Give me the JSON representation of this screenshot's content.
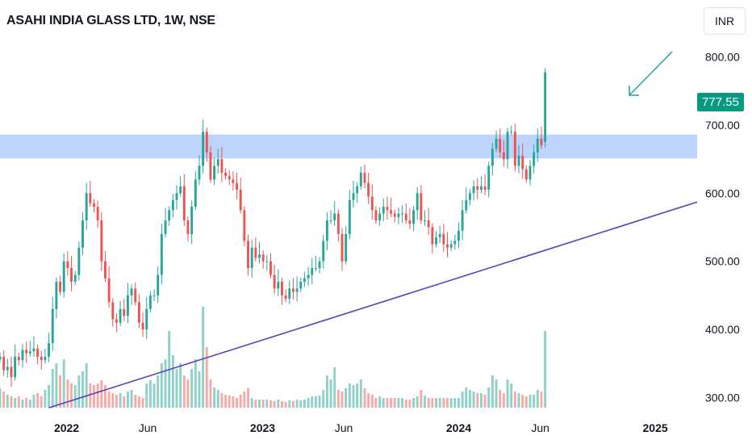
{
  "header": {
    "title": "ASAHI INDIA GLASS LTD, 1W, NSE",
    "currency": "INR"
  },
  "price_badge": "777.55",
  "colors": {
    "up": "#26a69a",
    "down": "#ef5350",
    "up_volume": "#8fd0c8",
    "down_volume": "#f7a9a7",
    "zone": "#b2cdfc",
    "trendline": "#5b3fb8",
    "arrow": "#26a69a"
  },
  "chart_data": {
    "type": "candlestick",
    "title": "",
    "xlabel": "",
    "ylabel": "",
    "ylim": [
      284,
      810
    ],
    "y_ticks": [
      "800.00",
      "700.00",
      "600.00",
      "500.00",
      "400.00",
      "300.00"
    ],
    "y_tick_values": [
      800,
      700,
      600,
      500,
      400,
      300
    ],
    "x_ticks": [
      {
        "label": "2022",
        "x": "2022-01-01"
      },
      {
        "label": "Jun",
        "x": "2022-06-01"
      },
      {
        "label": "2023",
        "x": "2023-01-01"
      },
      {
        "label": "Jun",
        "x": "2023-06-01"
      },
      {
        "label": "2024",
        "x": "2024-01-01"
      },
      {
        "label": "Jun",
        "x": "2024-06-01"
      },
      {
        "label": "2025",
        "x": "2025-01-01"
      }
    ],
    "x_range": [
      "2021-08-30",
      "2025-03-20"
    ],
    "start_week": "2021-08-30",
    "last_price": 777.55,
    "resistance_zone": {
      "low": 651,
      "high": 686
    },
    "trendline": {
      "from": {
        "x": "2021-11-29",
        "y": 285
      },
      "to": {
        "x": "2025-03-20",
        "y": 587
      }
    },
    "closes": [
      360,
      340,
      345,
      330,
      360,
      355,
      370,
      365,
      368,
      372,
      360,
      355,
      360,
      380,
      430,
      470,
      455,
      500,
      490,
      470,
      480,
      520,
      560,
      600,
      585,
      580,
      560,
      500,
      475,
      440,
      415,
      410,
      430,
      420,
      450,
      460,
      440,
      410,
      400,
      430,
      450,
      450,
      480,
      540,
      560,
      575,
      590,
      600,
      610,
      560,
      540,
      580,
      620,
      640,
      690,
      660,
      620,
      640,
      650,
      630,
      625,
      620,
      615,
      605,
      575,
      530,
      490,
      520,
      505,
      510,
      500,
      500,
      480,
      460,
      470,
      450,
      445,
      460,
      455,
      460,
      470,
      475,
      480,
      490,
      490,
      500,
      530,
      560,
      560,
      570,
      540,
      500,
      540,
      590,
      600,
      610,
      630,
      615,
      595,
      575,
      560,
      570,
      580,
      575,
      570,
      565,
      570,
      570,
      560,
      555,
      575,
      600,
      560,
      560,
      550,
      525,
      535,
      540,
      525,
      520,
      525,
      530,
      545,
      575,
      590,
      600,
      610,
      605,
      610,
      605,
      640,
      665,
      680,
      660,
      650,
      690,
      690,
      640,
      655,
      635,
      620,
      640,
      660,
      680,
      670,
      777.55
    ],
    "volumes": [
      24,
      20,
      16,
      14,
      12,
      14,
      10,
      12,
      10,
      16,
      18,
      14,
      22,
      28,
      48,
      55,
      40,
      60,
      35,
      30,
      28,
      40,
      45,
      55,
      30,
      28,
      30,
      34,
      28,
      20,
      18,
      16,
      18,
      14,
      20,
      22,
      16,
      14,
      12,
      30,
      34,
      30,
      40,
      55,
      60,
      95,
      65,
      48,
      55,
      40,
      35,
      48,
      60,
      45,
      125,
      75,
      35,
      25,
      22,
      18,
      16,
      15,
      14,
      12,
      16,
      20,
      24,
      12,
      10,
      10,
      10,
      10,
      9,
      8,
      10,
      8,
      7,
      9,
      8,
      10,
      9,
      10,
      12,
      14,
      14,
      15,
      22,
      40,
      35,
      50,
      22,
      20,
      24,
      30,
      28,
      30,
      35,
      24,
      18,
      16,
      12,
      14,
      12,
      12,
      12,
      12,
      12,
      12,
      10,
      10,
      12,
      14,
      22,
      15,
      12,
      12,
      12,
      12,
      12,
      12,
      12,
      12,
      12,
      20,
      25,
      22,
      20,
      18,
      18,
      16,
      25,
      40,
      35,
      22,
      18,
      35,
      30,
      20,
      18,
      16,
      14,
      16,
      16,
      22,
      20,
      95
    ]
  }
}
